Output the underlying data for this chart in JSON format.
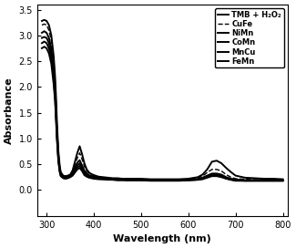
{
  "title": "",
  "xlabel": "Wavelength (nm)",
  "ylabel": "Absorbance",
  "xlim": [
    280,
    810
  ],
  "ylim": [
    -0.5,
    3.6
  ],
  "xticks": [
    300,
    400,
    500,
    600,
    700,
    800
  ],
  "yticks": [
    0.0,
    0.5,
    1.0,
    1.5,
    2.0,
    2.5,
    3.0,
    3.5
  ],
  "legend_labels": [
    "TMB + H₂O₂",
    "CuFe",
    "NiMn",
    "CoMn",
    "MnCu",
    "FeMn"
  ],
  "line_styles": [
    "-",
    "--",
    "-",
    "-",
    "-",
    "-"
  ],
  "line_colors": [
    "#000000",
    "#000000",
    "#000000",
    "#000000",
    "#000000",
    "#000000"
  ],
  "line_widths": [
    1.4,
    1.0,
    1.4,
    1.4,
    1.4,
    1.4
  ],
  "series": {
    "TMB": {
      "x": [
        290,
        295,
        300,
        305,
        310,
        315,
        318,
        320,
        322,
        325,
        328,
        330,
        335,
        340,
        345,
        350,
        355,
        360,
        365,
        370,
        375,
        380,
        385,
        390,
        395,
        400,
        410,
        420,
        430,
        440,
        450,
        460,
        470,
        480,
        490,
        500,
        520,
        540,
        560,
        580,
        600,
        620,
        630,
        640,
        650,
        660,
        670,
        680,
        690,
        700,
        720,
        740,
        760,
        780,
        800
      ],
      "y": [
        3.28,
        3.3,
        3.28,
        3.2,
        3.0,
        2.6,
        2.2,
        1.8,
        1.3,
        0.75,
        0.45,
        0.35,
        0.28,
        0.27,
        0.28,
        0.3,
        0.38,
        0.55,
        0.72,
        0.85,
        0.7,
        0.52,
        0.4,
        0.34,
        0.31,
        0.29,
        0.26,
        0.25,
        0.24,
        0.23,
        0.23,
        0.22,
        0.22,
        0.22,
        0.22,
        0.22,
        0.21,
        0.21,
        0.21,
        0.21,
        0.22,
        0.25,
        0.3,
        0.4,
        0.55,
        0.57,
        0.52,
        0.43,
        0.35,
        0.28,
        0.24,
        0.23,
        0.22,
        0.22,
        0.21
      ]
    },
    "CuFe": {
      "x": [
        290,
        295,
        300,
        305,
        310,
        315,
        318,
        320,
        322,
        325,
        328,
        330,
        335,
        340,
        345,
        350,
        355,
        360,
        365,
        370,
        375,
        380,
        385,
        390,
        395,
        400,
        410,
        420,
        430,
        440,
        450,
        460,
        470,
        480,
        490,
        500,
        520,
        540,
        560,
        580,
        600,
        620,
        630,
        640,
        650,
        660,
        670,
        680,
        690,
        700,
        720,
        740,
        760,
        780,
        800
      ],
      "y": [
        3.2,
        3.22,
        3.2,
        3.1,
        2.9,
        2.5,
        2.1,
        1.7,
        1.25,
        0.72,
        0.43,
        0.33,
        0.27,
        0.26,
        0.27,
        0.29,
        0.36,
        0.5,
        0.62,
        0.72,
        0.6,
        0.46,
        0.37,
        0.32,
        0.3,
        0.28,
        0.25,
        0.24,
        0.23,
        0.22,
        0.22,
        0.21,
        0.21,
        0.21,
        0.21,
        0.21,
        0.2,
        0.2,
        0.2,
        0.2,
        0.21,
        0.23,
        0.27,
        0.34,
        0.4,
        0.4,
        0.37,
        0.3,
        0.25,
        0.22,
        0.21,
        0.2,
        0.2,
        0.2,
        0.2
      ]
    },
    "NiMn": {
      "x": [
        290,
        295,
        300,
        305,
        310,
        315,
        318,
        320,
        322,
        325,
        328,
        330,
        335,
        340,
        345,
        350,
        355,
        360,
        365,
        370,
        375,
        380,
        385,
        390,
        395,
        400,
        410,
        420,
        430,
        440,
        450,
        460,
        470,
        480,
        490,
        500,
        520,
        540,
        560,
        580,
        600,
        620,
        630,
        640,
        650,
        660,
        670,
        680,
        690,
        700,
        720,
        740,
        760,
        780,
        800
      ],
      "y": [
        3.05,
        3.08,
        3.05,
        2.95,
        2.75,
        2.35,
        1.95,
        1.55,
        1.12,
        0.65,
        0.4,
        0.31,
        0.26,
        0.25,
        0.26,
        0.28,
        0.33,
        0.44,
        0.53,
        0.58,
        0.48,
        0.38,
        0.32,
        0.29,
        0.27,
        0.26,
        0.24,
        0.23,
        0.22,
        0.21,
        0.21,
        0.21,
        0.2,
        0.2,
        0.2,
        0.2,
        0.2,
        0.2,
        0.2,
        0.2,
        0.2,
        0.21,
        0.24,
        0.28,
        0.32,
        0.32,
        0.3,
        0.25,
        0.22,
        0.2,
        0.19,
        0.19,
        0.19,
        0.19,
        0.19
      ]
    },
    "CoMn": {
      "x": [
        290,
        295,
        300,
        305,
        310,
        315,
        318,
        320,
        322,
        325,
        328,
        330,
        335,
        340,
        345,
        350,
        355,
        360,
        365,
        370,
        375,
        380,
        385,
        390,
        395,
        400,
        410,
        420,
        430,
        440,
        450,
        460,
        470,
        480,
        490,
        500,
        520,
        540,
        560,
        580,
        600,
        620,
        630,
        640,
        650,
        660,
        670,
        680,
        690,
        700,
        720,
        740,
        760,
        780,
        800
      ],
      "y": [
        2.95,
        2.97,
        2.95,
        2.85,
        2.65,
        2.25,
        1.88,
        1.5,
        1.08,
        0.62,
        0.38,
        0.3,
        0.25,
        0.24,
        0.25,
        0.27,
        0.31,
        0.4,
        0.48,
        0.52,
        0.44,
        0.35,
        0.3,
        0.27,
        0.26,
        0.25,
        0.23,
        0.22,
        0.21,
        0.21,
        0.2,
        0.2,
        0.2,
        0.2,
        0.2,
        0.2,
        0.19,
        0.19,
        0.19,
        0.19,
        0.2,
        0.21,
        0.23,
        0.27,
        0.31,
        0.31,
        0.28,
        0.24,
        0.21,
        0.2,
        0.19,
        0.19,
        0.19,
        0.19,
        0.19
      ]
    },
    "MnCu": {
      "x": [
        290,
        295,
        300,
        305,
        310,
        315,
        318,
        320,
        322,
        325,
        328,
        330,
        335,
        340,
        345,
        350,
        355,
        360,
        365,
        370,
        375,
        380,
        385,
        390,
        395,
        400,
        410,
        420,
        430,
        440,
        450,
        460,
        470,
        480,
        490,
        500,
        520,
        540,
        560,
        580,
        600,
        620,
        630,
        640,
        650,
        660,
        670,
        680,
        690,
        700,
        720,
        740,
        760,
        780,
        800
      ],
      "y": [
        2.85,
        2.88,
        2.85,
        2.75,
        2.55,
        2.15,
        1.8,
        1.42,
        1.02,
        0.58,
        0.36,
        0.28,
        0.24,
        0.23,
        0.24,
        0.26,
        0.29,
        0.37,
        0.44,
        0.47,
        0.4,
        0.32,
        0.28,
        0.26,
        0.24,
        0.23,
        0.22,
        0.21,
        0.21,
        0.2,
        0.2,
        0.2,
        0.19,
        0.19,
        0.19,
        0.19,
        0.19,
        0.19,
        0.19,
        0.19,
        0.19,
        0.2,
        0.22,
        0.26,
        0.29,
        0.29,
        0.27,
        0.23,
        0.2,
        0.19,
        0.18,
        0.18,
        0.18,
        0.18,
        0.18
      ]
    },
    "FeMn": {
      "x": [
        290,
        295,
        300,
        305,
        310,
        315,
        318,
        320,
        322,
        325,
        328,
        330,
        335,
        340,
        345,
        350,
        355,
        360,
        365,
        370,
        375,
        380,
        385,
        390,
        395,
        400,
        410,
        420,
        430,
        440,
        450,
        460,
        470,
        480,
        490,
        500,
        520,
        540,
        560,
        580,
        600,
        620,
        630,
        640,
        650,
        660,
        670,
        680,
        690,
        700,
        720,
        740,
        760,
        780,
        800
      ],
      "y": [
        2.75,
        2.78,
        2.75,
        2.65,
        2.45,
        2.05,
        1.72,
        1.35,
        0.97,
        0.55,
        0.34,
        0.27,
        0.23,
        0.22,
        0.23,
        0.25,
        0.28,
        0.34,
        0.4,
        0.43,
        0.37,
        0.29,
        0.26,
        0.24,
        0.23,
        0.22,
        0.21,
        0.21,
        0.2,
        0.2,
        0.19,
        0.19,
        0.19,
        0.19,
        0.19,
        0.19,
        0.18,
        0.18,
        0.18,
        0.18,
        0.19,
        0.2,
        0.21,
        0.24,
        0.27,
        0.27,
        0.25,
        0.22,
        0.2,
        0.18,
        0.18,
        0.18,
        0.18,
        0.18,
        0.18
      ]
    }
  }
}
